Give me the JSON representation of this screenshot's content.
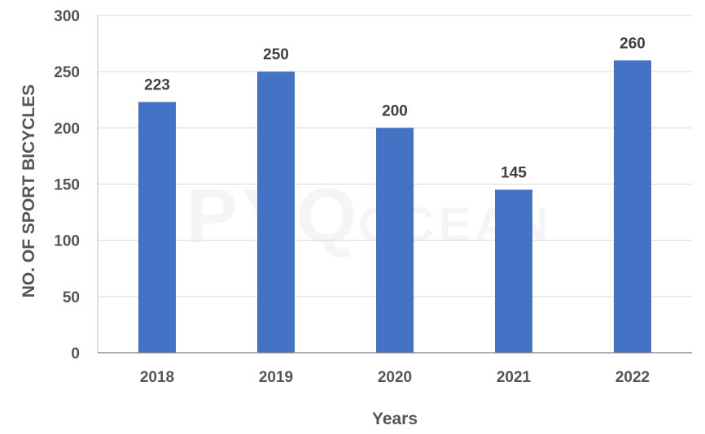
{
  "chart_data": {
    "type": "bar",
    "categories": [
      "2018",
      "2019",
      "2020",
      "2021",
      "2022"
    ],
    "values": [
      223,
      250,
      200,
      145,
      260
    ],
    "data_labels": [
      "223",
      "250",
      "200",
      "145",
      "260"
    ],
    "xlabel": "Years",
    "ylabel": "NO. OF  SPORT BICYCLES",
    "ylim": [
      0,
      300
    ],
    "yticks": [
      "0",
      "50",
      "100",
      "150",
      "200",
      "250",
      "300"
    ],
    "grid": true,
    "legend": "none",
    "bar_color": "#4472C4"
  },
  "watermark": {
    "main": "PYQ",
    "sub": "OCEAN"
  }
}
